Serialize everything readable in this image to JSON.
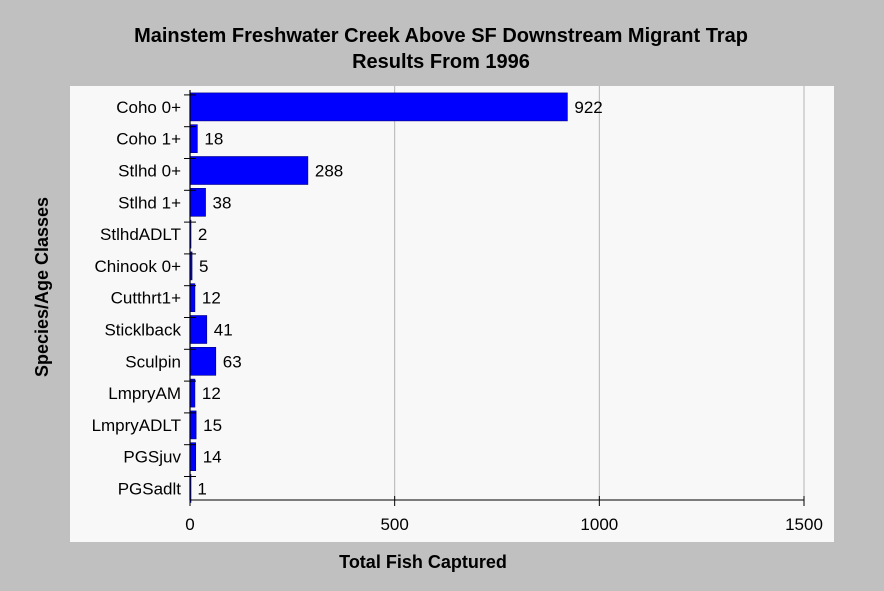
{
  "chart_data": {
    "type": "bar",
    "orientation": "horizontal",
    "title": "Mainstem Freshwater Creek Above SF Downstream Migrant Trap",
    "subtitle": "Results From 1996",
    "xlabel": "Total Fish Captured",
    "ylabel": "Species/Age Classes",
    "categories": [
      "Coho 0+",
      "Coho 1+",
      "Stlhd 0+",
      "Stlhd 1+",
      "StlhdADLT",
      "Chinook 0+",
      "Cutthrt1+",
      "Sticklback",
      "Sculpin",
      "LmpryAM",
      "LmpryADLT",
      "PGSjuv",
      "PGSadlt"
    ],
    "values": [
      922,
      18,
      288,
      38,
      2,
      5,
      12,
      41,
      63,
      12,
      15,
      14,
      1
    ],
    "data_labels": [
      "922",
      "18",
      "288",
      "38",
      "2",
      "5",
      "12",
      "41",
      "63",
      "12",
      "15",
      "14",
      "1"
    ],
    "xlim": [
      0,
      1500
    ],
    "xticks": [
      0,
      500,
      1000,
      1500
    ],
    "xtick_labels": [
      "0",
      "500",
      "1000",
      "1500"
    ],
    "grid": "vertical",
    "legend": "none",
    "colors": {
      "bar": "#0000ff",
      "bar_edge": "#000080",
      "plot_background": "#f8f8f8",
      "page_background": "#c0c0c0",
      "grid": "#b4b4b4"
    }
  }
}
